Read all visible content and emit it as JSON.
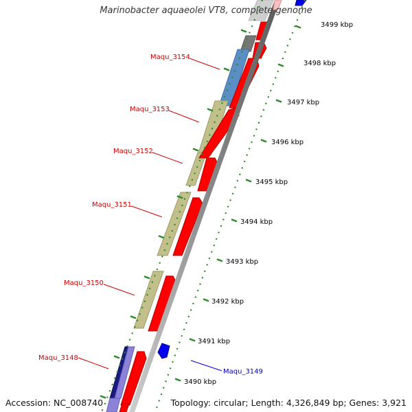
{
  "title": "Marinobacter aquaeolei VT8, complete genome",
  "accession": "Accession: NC_008740",
  "topology": "Topology: circular; Length: 4,326,849 bp; Genes: 3,921",
  "colors": {
    "cds_forward": "#ff0000",
    "cds_reverse": "#0000ee",
    "gene_label_forward": "#cc0000",
    "gene_label_reverse": "#0000cc",
    "cog_khaki": "#c2c08a",
    "cog_steelblue": "#5b8ec5",
    "cog_gray": "#777777",
    "cog_navy": "#1a1a80",
    "cog_lavender": "#8c82d8",
    "tick": "#2a8a2a",
    "backbone": "#999999"
  },
  "scale_ticks": [
    {
      "label": "3490 kbp"
    },
    {
      "label": "3491 kbp"
    },
    {
      "label": "3492 kbp"
    },
    {
      "label": "3493 kbp"
    },
    {
      "label": "3494 kbp"
    },
    {
      "label": "3495 kbp"
    },
    {
      "label": "3496 kbp"
    },
    {
      "label": "3497 kbp"
    },
    {
      "label": "3498 kbp"
    },
    {
      "label": "3499 kbp"
    }
  ],
  "gene_labels": [
    {
      "name": "Maqu_3154",
      "strand": "forward"
    },
    {
      "name": "Maqu_3153",
      "strand": "forward"
    },
    {
      "name": "Maqu_3152",
      "strand": "forward"
    },
    {
      "name": "Maqu_3151",
      "strand": "forward"
    },
    {
      "name": "Maqu_3150",
      "strand": "forward"
    },
    {
      "name": "Maqu_3148",
      "strand": "forward"
    },
    {
      "name": "Maqu_3149",
      "strand": "reverse"
    }
  ]
}
